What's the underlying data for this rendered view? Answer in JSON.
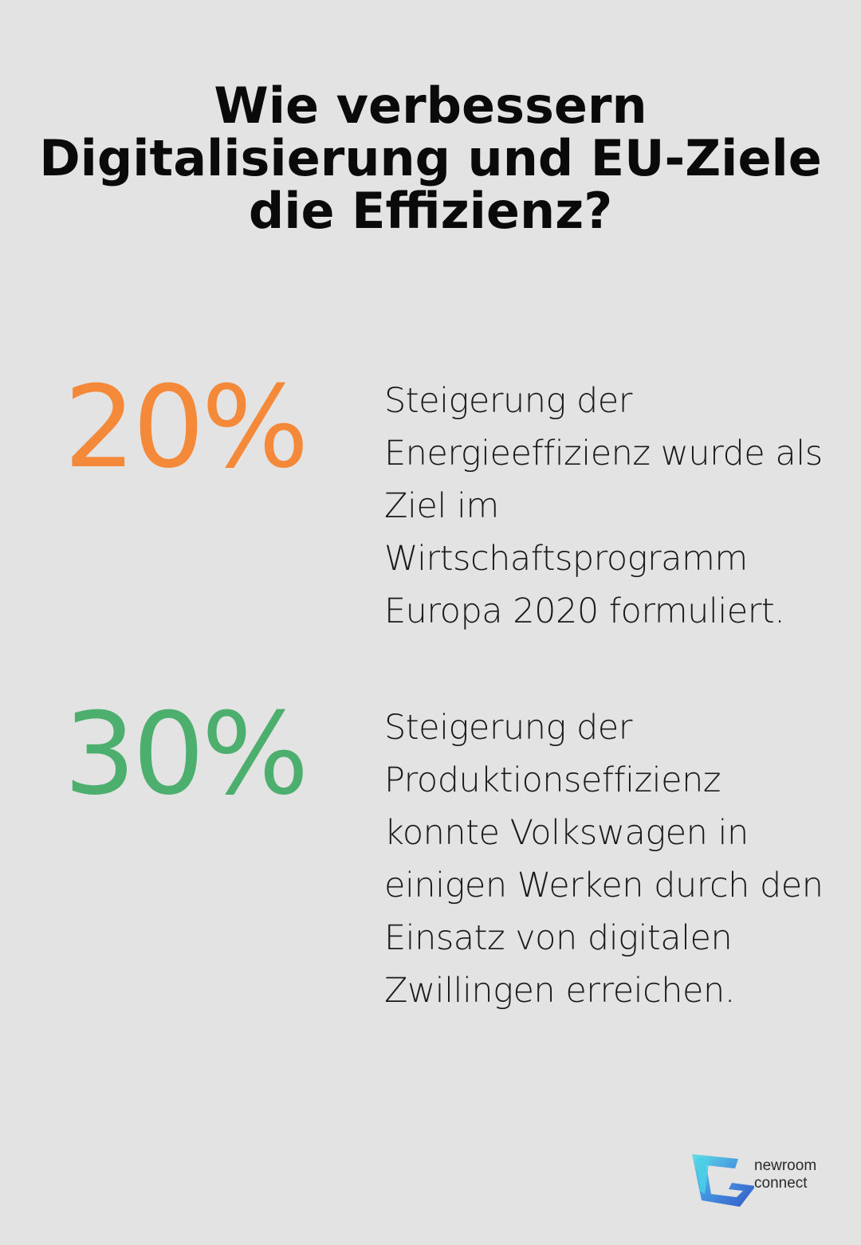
{
  "title": "Wie verbessern Digitalisierung und EU-Ziele die Effizienz?",
  "stats": [
    {
      "value": "20%",
      "color": "#f5893a",
      "description": "Steigerung der Energieeffizienz wurde als Ziel im Wirtschaftsprogramm Europa 2020 formuliert."
    },
    {
      "value": "30%",
      "color": "#4caf6e",
      "description": "Steigerung der Produktionseffizienz konnte Volkswagen in einigen Werken durch den Einsatz von digitalen Zwillingen erreichen."
    }
  ],
  "logo": {
    "line1": "newroom",
    "line2": "connect",
    "icon": "newroom-connect-logo-icon",
    "colors": [
      "#5ee0e6",
      "#3a8ee0",
      "#2b4fc4"
    ]
  }
}
